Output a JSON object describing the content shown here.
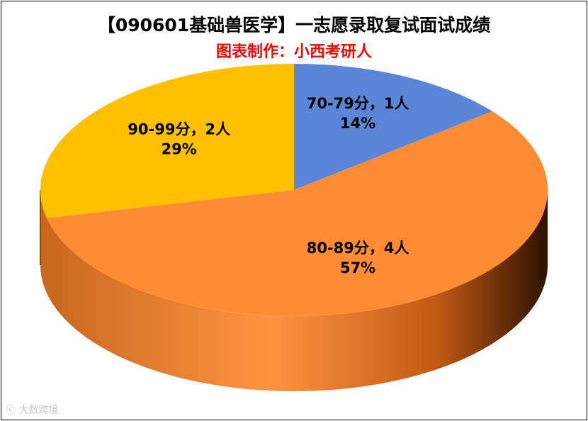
{
  "title": "【090601基础兽医学】一志愿录取复试面试成绩",
  "subtitle": "图表制作：小西考研人",
  "watermark": "大数跨境",
  "chart_data": {
    "type": "pie",
    "title": "【090601基础兽医学】一志愿录取复试面试成绩",
    "subtitle": "图表制作：小西考研人",
    "slices": [
      {
        "label": "70-79分",
        "value": 1,
        "unit": "人",
        "percent": "14%",
        "color": "#5b86d8"
      },
      {
        "label": "80-89分",
        "value": 4,
        "unit": "人",
        "percent": "57%",
        "color": "#ff8c33"
      },
      {
        "label": "90-99分",
        "value": 2,
        "unit": "人",
        "percent": "29%",
        "color": "#ffc000"
      }
    ]
  }
}
